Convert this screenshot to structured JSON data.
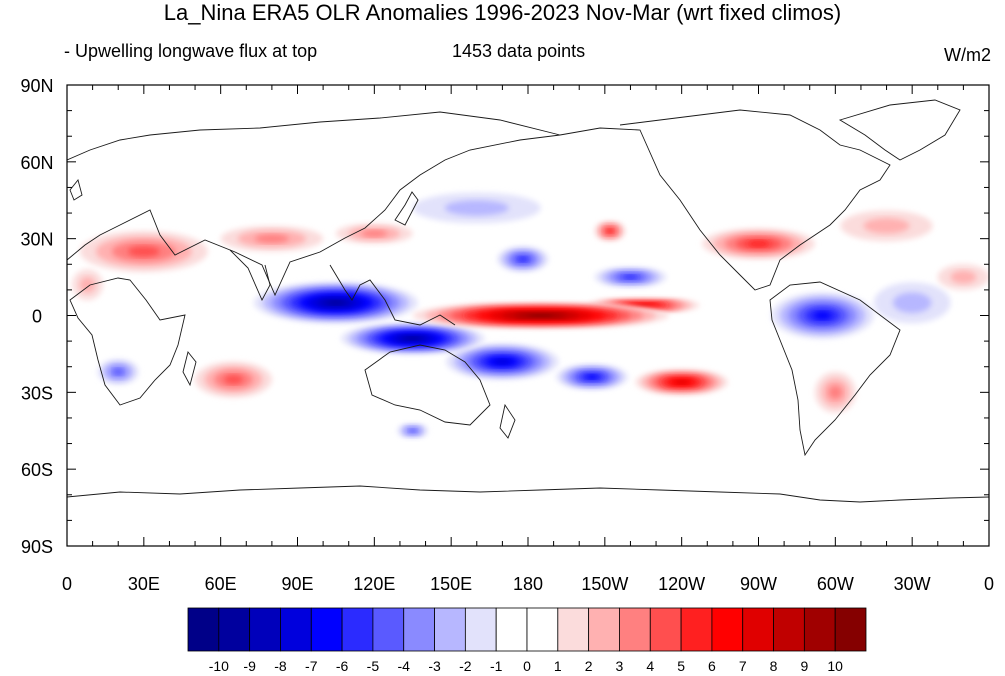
{
  "figure": {
    "title": "La_Nina ERA5 OLR Anomalies 1996-2023 Nov-Mar (wrt fixed climos)",
    "left_subtitle": "- Upwelling longwave flux at top",
    "center_subtitle": "1453 data points",
    "units": "W/m2"
  },
  "axes": {
    "y_ticks": [
      "90N",
      "60N",
      "30N",
      "0",
      "30S",
      "60S",
      "90S"
    ],
    "y_values": [
      90,
      60,
      30,
      0,
      -30,
      -60,
      -90
    ],
    "x_ticks": [
      "0",
      "30E",
      "60E",
      "90E",
      "120E",
      "150E",
      "180",
      "150W",
      "120W",
      "90W",
      "60W",
      "30W",
      "0"
    ],
    "x_values": [
      0,
      30,
      60,
      90,
      120,
      150,
      180,
      210,
      240,
      270,
      300,
      330,
      360
    ],
    "lon_range": [
      0,
      360
    ],
    "lat_range": [
      -90,
      90
    ],
    "minor_tick_step_deg": 10
  },
  "colorbar": {
    "labels": [
      "-10",
      "-9",
      "-8",
      "-7",
      "-6",
      "-5",
      "-4",
      "-3",
      "-2",
      "-1",
      "0",
      "1",
      "2",
      "3",
      "4",
      "5",
      "6",
      "7",
      "8",
      "9",
      "10"
    ],
    "colors": [
      "#000088",
      "#00009e",
      "#0000bb",
      "#0000dd",
      "#0000ff",
      "#2b2bff",
      "#5a5aff",
      "#8a8aff",
      "#b7b7ff",
      "#e2e2fb",
      "#ffffff",
      "#ffffff",
      "#fbdcdc",
      "#ffb1b1",
      "#ff8080",
      "#ff4f4f",
      "#ff2020",
      "#ff0000",
      "#e00000",
      "#c00000",
      "#a00000",
      "#850000"
    ]
  },
  "map_data": {
    "anomaly_regions": [
      {
        "value": -9,
        "center": [
          105,
          5
        ],
        "radius": [
          32,
          8
        ]
      },
      {
        "value": -9,
        "center": [
          135,
          -9
        ],
        "radius": [
          28,
          6
        ]
      },
      {
        "value": -7,
        "center": [
          170,
          -18
        ],
        "radius": [
          22,
          7
        ]
      },
      {
        "value": -6,
        "center": [
          205,
          -24
        ],
        "radius": [
          14,
          5
        ]
      },
      {
        "value": -5,
        "center": [
          178,
          22
        ],
        "radius": [
          10,
          5
        ]
      },
      {
        "value": -5,
        "center": [
          220,
          15
        ],
        "radius": [
          14,
          4
        ]
      },
      {
        "value": -6,
        "center": [
          295,
          0
        ],
        "radius": [
          20,
          9
        ]
      },
      {
        "value": -4,
        "center": [
          20,
          -22
        ],
        "radius": [
          8,
          5
        ]
      },
      {
        "value": -4,
        "center": [
          135,
          -45
        ],
        "radius": [
          6,
          3
        ]
      },
      {
        "value": -2,
        "center": [
          160,
          42
        ],
        "radius": [
          25,
          6
        ]
      },
      {
        "value": -2,
        "center": [
          330,
          5
        ],
        "radius": [
          15,
          8
        ]
      },
      {
        "value": 10,
        "center": [
          185,
          0
        ],
        "radius": [
          50,
          5
        ]
      },
      {
        "value": 7,
        "center": [
          225,
          4
        ],
        "radius": [
          22,
          3
        ]
      },
      {
        "value": 7,
        "center": [
          240,
          -26
        ],
        "radius": [
          18,
          5
        ]
      },
      {
        "value": 5,
        "center": [
          270,
          28
        ],
        "radius": [
          22,
          6
        ]
      },
      {
        "value": 5,
        "center": [
          212,
          33
        ],
        "radius": [
          6,
          4
        ]
      },
      {
        "value": 4,
        "center": [
          65,
          -25
        ],
        "radius": [
          15,
          7
        ]
      },
      {
        "value": 4,
        "center": [
          30,
          25
        ],
        "radius": [
          25,
          8
        ]
      },
      {
        "value": 3,
        "center": [
          80,
          30
        ],
        "radius": [
          20,
          5
        ]
      },
      {
        "value": 3,
        "center": [
          120,
          32
        ],
        "radius": [
          15,
          4
        ]
      },
      {
        "value": 3,
        "center": [
          300,
          -30
        ],
        "radius": [
          8,
          8
        ]
      },
      {
        "value": 2,
        "center": [
          320,
          35
        ],
        "radius": [
          18,
          6
        ]
      },
      {
        "value": 2,
        "center": [
          8,
          12
        ],
        "radius": [
          6,
          6
        ]
      },
      {
        "value": 2,
        "center": [
          350,
          15
        ],
        "radius": [
          10,
          5
        ]
      }
    ]
  }
}
